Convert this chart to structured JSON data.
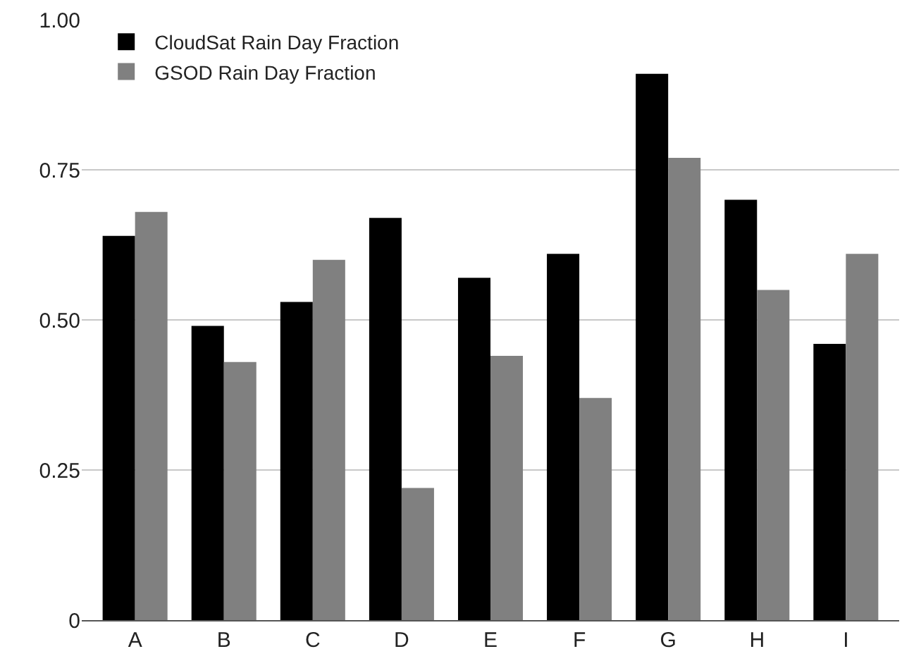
{
  "chart_data": {
    "type": "bar",
    "categories": [
      "A",
      "B",
      "C",
      "D",
      "E",
      "F",
      "G",
      "H",
      "I"
    ],
    "series": [
      {
        "name": "CloudSat Rain Day Fraction",
        "color": "#000000",
        "values": [
          0.64,
          0.49,
          0.53,
          0.67,
          0.57,
          0.61,
          0.91,
          0.7,
          0.46
        ]
      },
      {
        "name": "GSOD Rain Day Fraction",
        "color": "#808080",
        "values": [
          0.68,
          0.43,
          0.6,
          0.22,
          0.44,
          0.37,
          0.77,
          0.55,
          0.61
        ]
      }
    ],
    "ylim": [
      0,
      1
    ],
    "yticks": [
      0,
      {
        "value": 0.25,
        "label": "0.25"
      },
      {
        "value": 0.5,
        "label": "0.50"
      },
      {
        "value": 0.75,
        "label": "0.75"
      },
      {
        "value": 1,
        "label": "1.00"
      }
    ],
    "grid": "y",
    "legend": "top left"
  }
}
